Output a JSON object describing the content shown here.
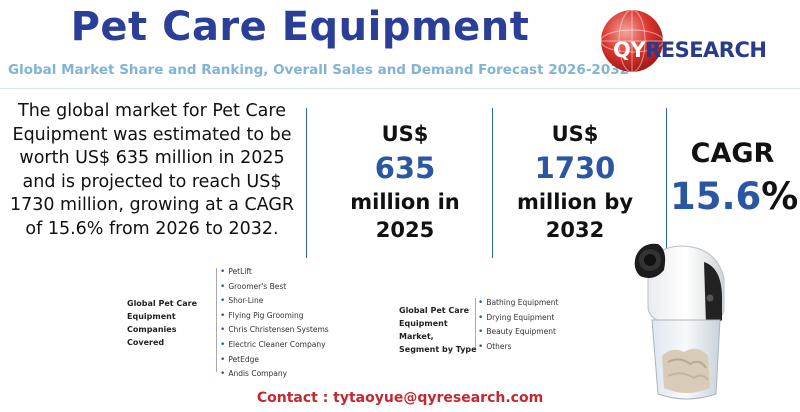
{
  "header": {
    "title": "Pet Care Equipment",
    "subtitle": "Global Market Share and Ranking, Overall Sales and Demand Forecast 2026-2032"
  },
  "logo": {
    "text_q": "QY",
    "text_rest": "RESEARCH"
  },
  "description": "The global market for Pet Care Equipment was estimated to be worth US$ 635 million in 2025 and is projected to reach US$ 1730 million, growing at a CAGR of 15.6% from 2026 to 2032.",
  "stats": [
    {
      "prefix": "US$",
      "value": "635",
      "suffix_1": "million in",
      "suffix_2": "2025"
    },
    {
      "prefix": "US$",
      "value": "1730",
      "suffix_1": "million by",
      "suffix_2": "2032"
    }
  ],
  "cagr": {
    "label": "CAGR",
    "value": "15.6",
    "unit": "%"
  },
  "companies": {
    "title_1": "Global Pet Care",
    "title_2": "Equipment Companies",
    "title_3": "Covered",
    "items": [
      "PetLift",
      "Groomer's Best",
      "Shor-Line",
      "Flying Pig Grooming",
      "Chris Christensen Systems",
      "Electric Cleaner Company",
      "PetEdge",
      "Andis Company"
    ]
  },
  "segments": {
    "title_1": "Global Pet Care",
    "title_2": "Equipment Market,",
    "title_3": "Segment by Type",
    "items": [
      "Bathing Equipment",
      "Drying Equipment",
      "Beauty Equipment",
      "Others"
    ]
  },
  "contact": {
    "label": "Contact : ",
    "email": "tytaoyue@qyresearch.com"
  },
  "colors": {
    "title": "#2b3f99",
    "accent": "#2b56a3",
    "subtitle": "#7fb4d8",
    "contact": "#c4282e"
  }
}
